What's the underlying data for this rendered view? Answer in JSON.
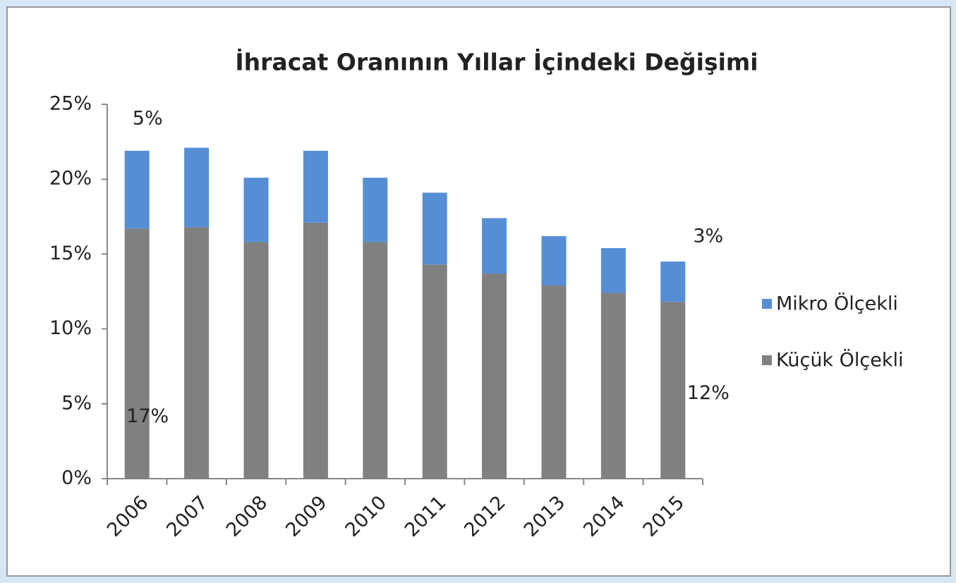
{
  "chart_data": {
    "type": "stacked_bar",
    "title": "İhracat Oranının Yıllar İçindeki Değişimi",
    "categories": [
      "2006",
      "2007",
      "2008",
      "2009",
      "2010",
      "2011",
      "2012",
      "2013",
      "2014",
      "2015"
    ],
    "series": [
      {
        "name": "Küçük Ölçekli",
        "color": "#808080",
        "values": [
          16.7,
          16.8,
          15.8,
          17.1,
          15.8,
          14.3,
          13.7,
          12.9,
          12.4,
          11.8
        ],
        "value_labels": [
          "17%",
          null,
          null,
          null,
          null,
          null,
          null,
          null,
          null,
          "12%"
        ]
      },
      {
        "name": "Mikro Ölçekli",
        "color": "#558ed5",
        "values": [
          5.2,
          5.3,
          4.3,
          4.8,
          4.3,
          4.8,
          3.7,
          3.3,
          3.0,
          2.7
        ],
        "value_labels": [
          "5%",
          null,
          null,
          null,
          null,
          null,
          null,
          null,
          null,
          "3%"
        ]
      }
    ],
    "ylim": [
      0,
      25
    ],
    "yticks": [
      {
        "value": 0,
        "label": "0%"
      },
      {
        "value": 5,
        "label": "5%"
      },
      {
        "value": 10,
        "label": "10%"
      },
      {
        "value": 15,
        "label": "15%"
      },
      {
        "value": 20,
        "label": "20%"
      },
      {
        "value": 25,
        "label": "25%"
      }
    ],
    "legend": "right",
    "grid": false
  }
}
